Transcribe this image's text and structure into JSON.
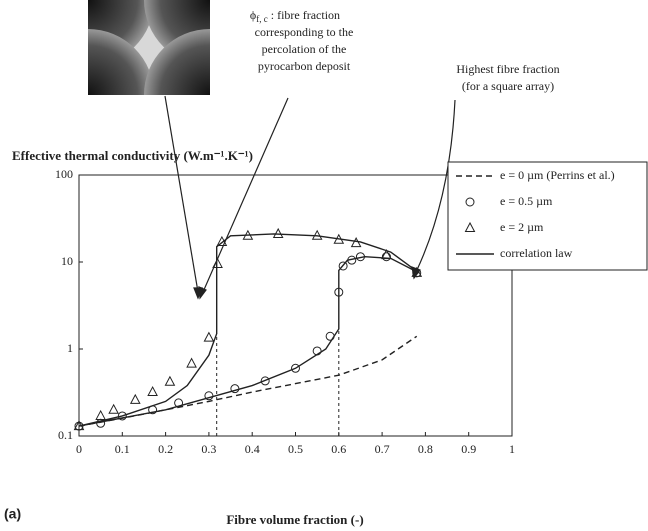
{
  "chart_data": {
    "type": "line",
    "log_y": true,
    "y_label": "Effective thermal conductivity (W.m⁻¹.K⁻¹)",
    "x_label": "Fibre volume fraction (-)",
    "panel_label": "(a)",
    "annotations": {
      "percolation": {
        "symbol": "ϕ",
        "subscript": "f, c",
        "lines": [
          ": fibre fraction",
          "corresponding to the",
          "percolation of the",
          "pyrocarbon deposit"
        ]
      },
      "highest": {
        "lines": [
          "Highest fibre fraction",
          "(for a square array)"
        ]
      }
    },
    "xlim": [
      0,
      1
    ],
    "xticks": [
      0,
      0.1,
      0.2,
      0.3,
      0.4,
      0.5,
      0.6,
      0.7,
      0.8,
      0.9,
      1
    ],
    "ylim": [
      0.1,
      100
    ],
    "yticks": [
      0.1,
      1,
      10,
      100
    ],
    "legend": "top-right",
    "series": [
      {
        "name": "e = 0 µm (Perrins et al.)",
        "color": "#222",
        "style": "dashed",
        "x": [
          0,
          0.1,
          0.2,
          0.3,
          0.4,
          0.5,
          0.6,
          0.7,
          0.78
        ],
        "values": [
          0.13,
          0.16,
          0.2,
          0.25,
          0.32,
          0.4,
          0.5,
          0.75,
          1.4
        ]
      },
      {
        "name": "e = 0.5 µm",
        "color": "#222",
        "style": "circle",
        "x": [
          0,
          0.05,
          0.1,
          0.17,
          0.23,
          0.3,
          0.36,
          0.43,
          0.5,
          0.55,
          0.58,
          0.6,
          0.61,
          0.63,
          0.65,
          0.71,
          0.78
        ],
        "values": [
          0.13,
          0.14,
          0.17,
          0.2,
          0.24,
          0.29,
          0.35,
          0.43,
          0.6,
          0.95,
          1.4,
          4.5,
          9,
          10.5,
          11.5,
          11.5,
          7.5
        ]
      },
      {
        "name": "e = 2 µm",
        "color": "#222",
        "style": "triangle",
        "x": [
          0,
          0.05,
          0.08,
          0.13,
          0.17,
          0.21,
          0.26,
          0.3,
          0.32,
          0.33,
          0.39,
          0.46,
          0.55,
          0.6,
          0.64,
          0.71,
          0.78
        ],
        "values": [
          0.13,
          0.17,
          0.2,
          0.26,
          0.32,
          0.42,
          0.68,
          1.35,
          9.5,
          17,
          20,
          21,
          20,
          18,
          16.5,
          12,
          7.5
        ]
      },
      {
        "name": "correlation law",
        "color": "#222",
        "style": "solid",
        "x": [
          0,
          0.1,
          0.2,
          0.25,
          0.3,
          0.318,
          0.318,
          0.35,
          0.45,
          0.55,
          0.65,
          0.72,
          0.785,
          null,
          0,
          0.2,
          0.4,
          0.5,
          0.57,
          0.6,
          0.6,
          0.62,
          0.66,
          0.72,
          0.785
        ],
        "values": [
          0.13,
          0.17,
          0.25,
          0.38,
          0.85,
          1.5,
          15,
          20,
          21,
          20,
          17,
          13,
          7.5,
          null,
          0.13,
          0.2,
          0.38,
          0.6,
          1.0,
          1.7,
          8,
          10.5,
          11.5,
          11,
          7.5
        ]
      }
    ]
  }
}
